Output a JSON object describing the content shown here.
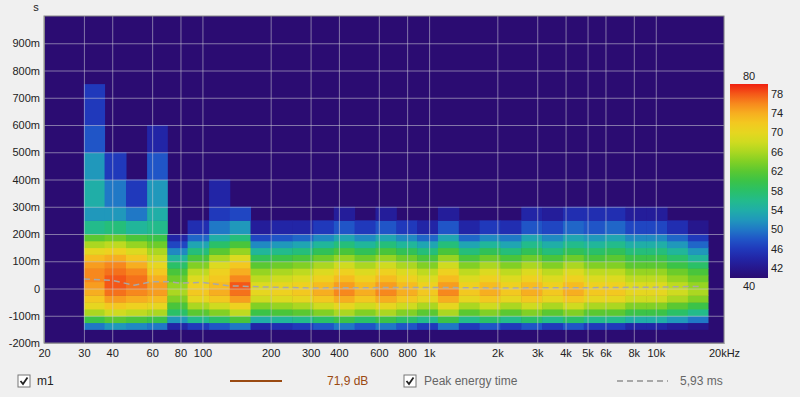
{
  "chart_data": {
    "type": "spectrogram",
    "y_label": "s",
    "log": "x",
    "grid": true,
    "xlim": [
      20,
      20000
    ],
    "xticks": [
      20,
      30,
      40,
      60,
      80,
      100,
      200,
      300,
      400,
      600,
      800,
      {
        "value": 1000,
        "label": "1k"
      },
      {
        "value": 2000,
        "label": "2k"
      },
      {
        "value": 3000,
        "label": "3k"
      },
      {
        "value": 4000,
        "label": "4k"
      },
      {
        "value": 5000,
        "label": "5k"
      },
      {
        "value": 6000,
        "label": "6k"
      },
      {
        "value": 8000,
        "label": "8k"
      },
      {
        "value": 10000,
        "label": "10k"
      },
      {
        "value": 20000,
        "label": "20kHz"
      }
    ],
    "ylim": [
      -0.2,
      1.0
    ],
    "yticks": [
      {
        "value": -0.2,
        "label": "-200m"
      },
      {
        "value": -0.1,
        "label": "-100m"
      },
      0,
      {
        "value": 0.1,
        "label": "100m"
      },
      {
        "value": 0.2,
        "label": "200m"
      },
      {
        "value": 0.3,
        "label": "300m"
      },
      {
        "value": 0.4,
        "label": "400m"
      },
      {
        "value": 0.5,
        "label": "500m"
      },
      {
        "value": 0.6,
        "label": "600m"
      },
      {
        "value": 0.7,
        "label": "700m"
      },
      {
        "value": 0.8,
        "label": "800m"
      },
      {
        "value": 0.9,
        "label": "900m"
      }
    ],
    "heatmap": {
      "name": "m1",
      "color": "#9a4a12",
      "legend_value": "71,9 dB",
      "x_edges": [
        30,
        37,
        46,
        57,
        70,
        86,
        107,
        132,
        163,
        201,
        249,
        308,
        380,
        469,
        580,
        717,
        886,
        1094,
        1352,
        1671,
        2064,
        2551,
        3152,
        3895,
        4812,
        5946,
        7347,
        9078,
        11217,
        13860,
        17000
      ],
      "y_edges": [
        -0.15,
        -0.125,
        -0.1,
        -0.075,
        -0.05,
        -0.025,
        0,
        0.025,
        0.05,
        0.075,
        0.1,
        0.125,
        0.15,
        0.175,
        0.2,
        0.25,
        0.3,
        0.4,
        0.5,
        0.6,
        0.75
      ],
      "cells": [
        [
          50,
          52,
          51,
          50,
          44,
          46,
          48,
          50,
          44,
          45,
          46,
          48,
          50,
          48,
          50,
          48,
          46,
          50,
          46,
          48,
          46,
          48,
          46,
          48,
          46,
          46,
          44,
          44,
          43,
          42
        ],
        [
          60,
          62,
          61,
          60,
          52,
          56,
          58,
          61,
          54,
          55,
          56,
          58,
          60,
          58,
          60,
          58,
          56,
          60,
          56,
          58,
          56,
          58,
          56,
          58,
          56,
          56,
          54,
          54,
          52,
          50
        ],
        [
          66,
          68,
          67,
          66,
          58,
          62,
          64,
          67,
          60,
          61,
          62,
          64,
          66,
          64,
          66,
          64,
          62,
          66,
          62,
          64,
          62,
          64,
          62,
          64,
          62,
          62,
          60,
          60,
          58,
          56
        ],
        [
          70,
          72,
          71,
          70,
          61,
          66,
          68,
          71,
          64,
          65,
          66,
          68,
          70,
          68,
          70,
          68,
          66,
          70,
          66,
          68,
          66,
          68,
          66,
          68,
          66,
          66,
          64,
          64,
          62,
          60
        ],
        [
          72,
          75,
          74,
          73,
          64,
          70,
          72,
          75,
          68,
          69,
          70,
          72,
          74,
          72,
          74,
          72,
          70,
          74,
          70,
          72,
          70,
          72,
          70,
          72,
          70,
          70,
          68,
          68,
          66,
          64
        ],
        [
          74,
          77,
          76,
          75,
          66,
          72,
          74,
          77,
          70,
          71,
          72,
          74,
          76,
          74,
          76,
          74,
          72,
          76,
          72,
          74,
          72,
          74,
          72,
          74,
          72,
          72,
          70,
          70,
          68,
          66
        ],
        [
          75,
          78,
          77,
          75,
          65,
          71,
          73,
          78,
          69,
          70,
          71,
          73,
          75,
          73,
          75,
          73,
          71,
          75,
          71,
          73,
          71,
          73,
          71,
          73,
          71,
          71,
          69,
          69,
          67,
          65
        ],
        [
          76,
          78,
          77,
          74,
          63,
          69,
          72,
          76,
          67,
          68,
          69,
          71,
          73,
          71,
          73,
          71,
          69,
          73,
          69,
          71,
          69,
          71,
          69,
          71,
          69,
          69,
          67,
          67,
          65,
          63
        ],
        [
          76,
          77,
          76,
          72,
          61,
          67,
          71,
          74,
          65,
          66,
          67,
          69,
          71,
          69,
          71,
          69,
          67,
          71,
          67,
          69,
          67,
          69,
          67,
          69,
          67,
          67,
          65,
          65,
          63,
          61
        ],
        [
          75,
          76,
          74,
          70,
          58,
          64,
          69,
          72,
          62,
          63,
          64,
          66,
          68,
          66,
          68,
          66,
          64,
          68,
          64,
          66,
          64,
          66,
          64,
          66,
          64,
          64,
          62,
          62,
          60,
          58
        ],
        [
          73,
          74,
          72,
          68,
          55,
          61,
          66,
          69,
          59,
          60,
          61,
          63,
          65,
          63,
          65,
          63,
          61,
          65,
          61,
          63,
          61,
          63,
          61,
          63,
          61,
          62,
          60,
          60,
          58,
          55
        ],
        [
          70,
          71,
          69,
          66,
          51,
          57,
          62,
          65,
          55,
          56,
          57,
          59,
          61,
          59,
          61,
          59,
          57,
          61,
          57,
          59,
          57,
          59,
          57,
          59,
          58,
          59,
          57,
          57,
          55,
          52
        ],
        [
          66,
          67,
          65,
          63,
          47,
          53,
          58,
          61,
          51,
          52,
          53,
          55,
          57,
          55,
          57,
          55,
          53,
          57,
          53,
          55,
          53,
          56,
          54,
          56,
          55,
          56,
          54,
          54,
          52,
          49
        ],
        [
          62,
          63,
          61,
          60,
          44,
          49,
          54,
          57,
          47,
          48,
          49,
          51,
          53,
          51,
          53,
          51,
          49,
          53,
          49,
          51,
          50,
          53,
          51,
          53,
          52,
          53,
          51,
          51,
          49,
          46
        ],
        [
          56,
          57,
          55,
          56,
          null,
          45,
          50,
          52,
          43,
          44,
          44,
          46,
          48,
          46,
          48,
          46,
          44,
          48,
          44,
          46,
          45,
          48,
          47,
          49,
          48,
          49,
          47,
          47,
          45,
          42
        ],
        [
          52,
          52,
          50,
          54,
          null,
          null,
          46,
          47,
          null,
          null,
          null,
          null,
          43,
          null,
          43,
          null,
          null,
          43,
          null,
          null,
          null,
          44,
          43,
          45,
          45,
          45,
          43,
          43,
          null,
          null
        ],
        [
          54,
          50,
          46,
          52,
          null,
          null,
          44,
          null,
          null,
          null,
          null,
          null,
          null,
          null,
          null,
          null,
          null,
          null,
          null,
          null,
          null,
          null,
          null,
          null,
          null,
          null,
          null,
          null,
          null,
          null
        ],
        [
          52,
          46,
          null,
          48,
          null,
          null,
          null,
          null,
          null,
          null,
          null,
          null,
          null,
          null,
          null,
          null,
          null,
          null,
          null,
          null,
          null,
          null,
          null,
          null,
          null,
          null,
          null,
          null,
          null,
          null
        ],
        [
          48,
          null,
          null,
          44,
          null,
          null,
          null,
          null,
          null,
          null,
          null,
          null,
          null,
          null,
          null,
          null,
          null,
          null,
          null,
          null,
          null,
          null,
          null,
          null,
          null,
          null,
          null,
          null,
          null,
          null
        ],
        [
          46,
          null,
          null,
          null,
          null,
          null,
          null,
          null,
          null,
          null,
          null,
          null,
          null,
          null,
          null,
          null,
          null,
          null,
          null,
          null,
          null,
          null,
          null,
          null,
          null,
          null,
          null,
          null,
          null,
          null
        ]
      ]
    },
    "colorbar": {
      "range": [
        40,
        80
      ],
      "ticks": [
        40,
        42,
        46,
        50,
        54,
        58,
        62,
        66,
        70,
        74,
        78,
        80
      ]
    },
    "series": [
      {
        "name": "Peak energy time",
        "color": "#a8a8a8",
        "line_style": "dashed",
        "legend_value": "5,93 ms",
        "x": [
          30,
          40,
          50,
          60,
          70,
          80,
          100,
          130,
          200,
          300,
          500,
          1000,
          2000,
          5000,
          10000,
          16000
        ],
        "values": [
          0.035,
          0.03,
          0.012,
          0.025,
          0.025,
          0.02,
          0.022,
          0.01,
          0.005,
          0.002,
          0.003,
          0.004,
          0.002,
          0.003,
          0.005,
          0.008
        ]
      }
    ]
  }
}
